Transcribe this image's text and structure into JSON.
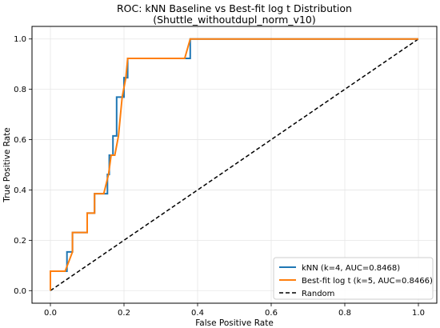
{
  "chart_data": {
    "type": "line",
    "title": "ROC: kNN Baseline vs Best-fit log t Distribution",
    "subtitle": "(Shuttle_withoutdupl_norm_v10)",
    "xlabel": "False Positive Rate",
    "ylabel": "True Positive Rate",
    "xlim": [
      -0.05,
      1.05
    ],
    "ylim": [
      -0.05,
      1.05
    ],
    "xticks": [
      "0.0",
      "0.2",
      "0.4",
      "0.6",
      "0.8",
      "1.0"
    ],
    "yticks": [
      "0.0",
      "0.2",
      "0.4",
      "0.6",
      "0.8",
      "1.0"
    ],
    "grid": true,
    "legend_position": "lower-right",
    "series": [
      {
        "name": "kNN (k=4, AUC=0.8468)",
        "color": "#1f77b4",
        "style": "solid",
        "x": [
          0.0,
          0.0,
          0.03,
          0.03,
          0.045,
          0.045,
          0.06,
          0.06,
          0.1,
          0.1,
          0.11,
          0.11,
          0.12,
          0.12,
          0.155,
          0.155,
          0.16,
          0.16,
          0.17,
          0.17,
          0.18,
          0.18,
          0.19,
          0.19,
          0.2,
          0.2,
          0.21,
          0.21,
          0.38,
          0.38,
          1.0
        ],
        "y": [
          0.0,
          0.077,
          0.077,
          0.077,
          0.077,
          0.154,
          0.154,
          0.231,
          0.231,
          0.308,
          0.308,
          0.308,
          0.308,
          0.385,
          0.385,
          0.462,
          0.462,
          0.538,
          0.538,
          0.615,
          0.615,
          0.769,
          0.769,
          0.769,
          0.769,
          0.846,
          0.846,
          0.923,
          0.923,
          1.0,
          1.0
        ]
      },
      {
        "name": "Best-fit log t (k=5, AUC=0.8466)",
        "color": "#ff7f0e",
        "style": "solid",
        "x": [
          0.0,
          0.0,
          0.04,
          0.04,
          0.06,
          0.06,
          0.08,
          0.08,
          0.1,
          0.1,
          0.12,
          0.12,
          0.145,
          0.145,
          0.158,
          0.165,
          0.175,
          0.185,
          0.19,
          0.195,
          0.205,
          0.21,
          0.365,
          0.38,
          1.0
        ],
        "y": [
          0.0,
          0.077,
          0.077,
          0.077,
          0.154,
          0.231,
          0.231,
          0.231,
          0.231,
          0.308,
          0.308,
          0.385,
          0.385,
          0.385,
          0.462,
          0.538,
          0.538,
          0.615,
          0.692,
          0.769,
          0.846,
          0.923,
          0.923,
          1.0,
          1.0
        ]
      },
      {
        "name": "Random",
        "color": "#000000",
        "style": "dashed",
        "x": [
          0.0,
          1.0
        ],
        "y": [
          0.0,
          1.0
        ]
      }
    ]
  }
}
